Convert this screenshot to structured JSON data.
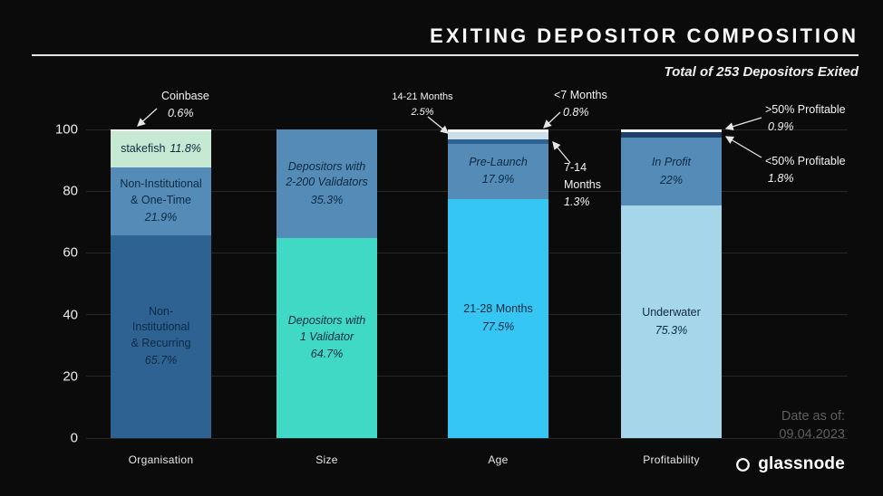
{
  "chart_data": {
    "type": "bar",
    "stacked": true,
    "title": "EXITING DEPOSITOR COMPOSITION",
    "subtitle": "Total of 253 Depositors Exited",
    "ylim": [
      0,
      100
    ],
    "y_ticks": [
      0,
      20,
      40,
      60,
      80,
      100
    ],
    "grid": "horizontal",
    "categories": [
      "Organisation",
      "Size",
      "Age",
      "Profitability"
    ],
    "bars": [
      {
        "category": "Organisation",
        "segments": [
          {
            "name": "Non-Institutional & Recurring",
            "pct": 65.7,
            "display": "65.7%",
            "color": "#2e6293",
            "label_lines": [
              "Non-",
              "Institutional",
              "& Recurring"
            ],
            "italic": false,
            "inline": false
          },
          {
            "name": "Non-Institutional & One-Time",
            "pct": 21.9,
            "display": "21.9%",
            "color": "#548bb7",
            "label_lines": [
              "Non-Institutional",
              "& One-Time"
            ],
            "italic": false,
            "inline": false
          },
          {
            "name": "stakefish",
            "pct": 11.8,
            "display": "11.8%",
            "color": "#c6e9d4",
            "label_lines": [
              "stakefish"
            ],
            "italic": false,
            "inline": true
          },
          {
            "name": "Coinbase",
            "pct": 0.6,
            "display": "0.6%",
            "color": "#f4f7f5",
            "label_lines": [],
            "italic": false,
            "inline": false
          }
        ]
      },
      {
        "category": "Size",
        "segments": [
          {
            "name": "Depositors with 1 Validator",
            "pct": 64.7,
            "display": "64.7%",
            "color": "#3fd9c6",
            "label_lines": [
              "Depositors with",
              "1 Validator"
            ],
            "italic": true,
            "inline": false
          },
          {
            "name": "Depositors with 2-200 Validators",
            "pct": 35.3,
            "display": "35.3%",
            "color": "#548bb7",
            "label_lines": [
              "Depositors with",
              "2-200 Validators"
            ],
            "italic": true,
            "inline": false
          }
        ]
      },
      {
        "category": "Age",
        "segments": [
          {
            "name": "21-28 Months",
            "pct": 77.5,
            "display": "77.5%",
            "color": "#35c6f4",
            "label_lines": [
              "21-28 Months"
            ],
            "italic": false,
            "inline": false
          },
          {
            "name": "Pre-Launch",
            "pct": 17.9,
            "display": "17.9%",
            "color": "#548bb7",
            "label_lines": [
              "Pre-Launch"
            ],
            "italic": true,
            "inline": false
          },
          {
            "name": "7-14 Months",
            "pct": 1.3,
            "display": "1.3%",
            "color": "#2e6293",
            "label_lines": [],
            "italic": false,
            "inline": false
          },
          {
            "name": "14-21 Months",
            "pct": 2.5,
            "display": "2.5%",
            "color": "#ccdfe9",
            "label_lines": [],
            "italic": false,
            "inline": false
          },
          {
            "name": "<7 Months",
            "pct": 0.8,
            "display": "0.8%",
            "color": "#f4f7f5",
            "label_lines": [],
            "italic": false,
            "inline": false
          }
        ]
      },
      {
        "category": "Profitability",
        "segments": [
          {
            "name": "Underwater",
            "pct": 75.3,
            "display": "75.3%",
            "color": "#a6d6e9",
            "label_lines": [
              "Underwater"
            ],
            "italic": false,
            "inline": false
          },
          {
            "name": "In Profit",
            "pct": 22,
            "display": "22%",
            "color": "#548bb7",
            "label_lines": [
              "In Profit"
            ],
            "italic": true,
            "inline": false
          },
          {
            "name": "<50% Profitable",
            "pct": 1.8,
            "display": "1.8%",
            "color": "#1f4066",
            "label_lines": [],
            "italic": false,
            "inline": false
          },
          {
            "name": ">50% Profitable",
            "pct": 0.9,
            "display": "0.9%",
            "color": "#f4f7f5",
            "label_lines": [],
            "italic": false,
            "inline": false
          }
        ]
      }
    ],
    "annotations": [
      {
        "id": "coinbase",
        "label": "Coinbase",
        "value": "0.6%"
      },
      {
        "id": "months-14-21",
        "label": "14-21 Months",
        "value": "2.5%"
      },
      {
        "id": "months-lt-7",
        "label": "<7 Months",
        "value": "0.8%"
      },
      {
        "id": "months-7-14",
        "label": "7-14 Months",
        "value": "1.3%"
      },
      {
        "id": "profitable-gt-50",
        "label": ">50% Profitable",
        "value": "0.9%"
      },
      {
        "id": "profitable-lt-50",
        "label": "<50% Profitable",
        "value": "1.8%"
      }
    ]
  },
  "footer": {
    "date_label": "Date as of:",
    "date_value": "09.04.2023",
    "brand": "glassnode"
  },
  "theme": {
    "background": "#0b0b0b",
    "text": "#f2f2f2",
    "grid": "#282828"
  }
}
